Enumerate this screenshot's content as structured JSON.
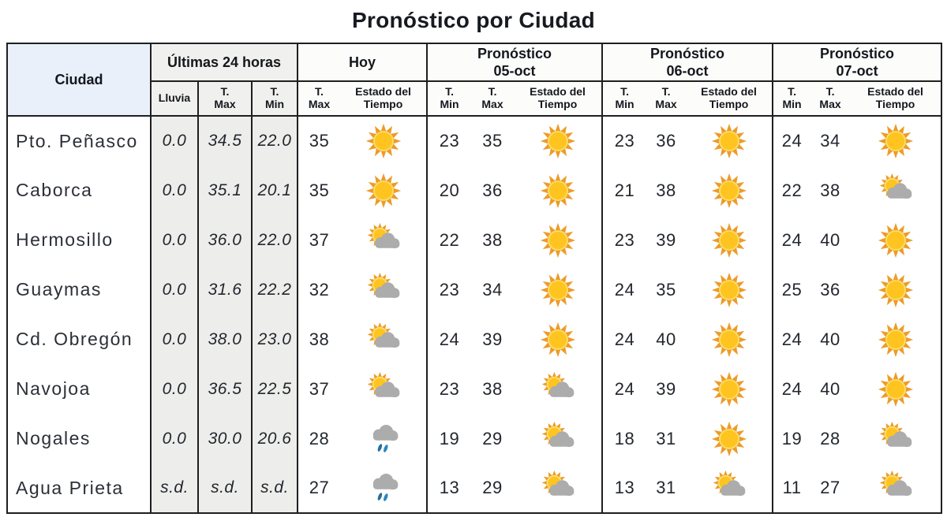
{
  "title": "Pronóstico por Ciudad",
  "colors": {
    "header_blue": "#e9f0f9",
    "header_gray": "#f0f0ee",
    "column_gray": "#ededeb",
    "table_border": "#1f1f1f",
    "text": "#23272e",
    "sun_ray": "#ed9b28",
    "sun_core": "#ffc41f",
    "sun_ring": "#f8df6c",
    "cloud": "#acacac",
    "rain": "#2e86bb",
    "rain_dark": "#276f9e"
  },
  "table": {
    "header": {
      "ciudad": "Ciudad",
      "last24": {
        "title": "Últimas 24 horas",
        "lluvia": "Lluvia",
        "tmax": "T.\nMax",
        "tmin": "T.\nMin"
      },
      "hoy": {
        "title": "Hoy",
        "tmax": "T.\nMax",
        "estado": "Estado del\nTiempo"
      },
      "f05": {
        "title": "Pronóstico\n05-oct",
        "tmin": "T.\nMin",
        "tmax": "T.\nMax",
        "estado": "Estado del\nTiempo"
      },
      "f06": {
        "title": "Pronóstico\n06-oct",
        "tmin": "T.\nMin",
        "tmax": "T.\nMax",
        "estado": "Estado del\nTiempo"
      },
      "f07": {
        "title": "Pronóstico\n07-oct",
        "tmin": "T.\nMin",
        "tmax": "T.\nMax",
        "estado": "Estado del\nTiempo"
      }
    },
    "rows": [
      {
        "city": "Pto. Peñasco",
        "lluvia": "0.0",
        "tmax24": "34.5",
        "tmin24": "22.0",
        "hoy": {
          "tmax": "35",
          "estado": "sunny"
        },
        "f05": {
          "tmin": "23",
          "tmax": "35",
          "estado": "sunny"
        },
        "f06": {
          "tmin": "23",
          "tmax": "36",
          "estado": "sunny"
        },
        "f07": {
          "tmin": "24",
          "tmax": "34",
          "estado": "sunny"
        }
      },
      {
        "city": "Caborca",
        "lluvia": "0.0",
        "tmax24": "35.1",
        "tmin24": "20.1",
        "hoy": {
          "tmax": "35",
          "estado": "sunny"
        },
        "f05": {
          "tmin": "20",
          "tmax": "36",
          "estado": "sunny"
        },
        "f06": {
          "tmin": "21",
          "tmax": "38",
          "estado": "sunny"
        },
        "f07": {
          "tmin": "22",
          "tmax": "38",
          "estado": "partly-cloudy"
        }
      },
      {
        "city": "Hermosillo",
        "lluvia": "0.0",
        "tmax24": "36.0",
        "tmin24": "22.0",
        "hoy": {
          "tmax": "37",
          "estado": "partly-cloudy"
        },
        "f05": {
          "tmin": "22",
          "tmax": "38",
          "estado": "sunny"
        },
        "f06": {
          "tmin": "23",
          "tmax": "39",
          "estado": "sunny"
        },
        "f07": {
          "tmin": "24",
          "tmax": "40",
          "estado": "sunny"
        }
      },
      {
        "city": "Guaymas",
        "lluvia": "0.0",
        "tmax24": "31.6",
        "tmin24": "22.2",
        "hoy": {
          "tmax": "32",
          "estado": "partly-cloudy"
        },
        "f05": {
          "tmin": "23",
          "tmax": "34",
          "estado": "sunny"
        },
        "f06": {
          "tmin": "24",
          "tmax": "35",
          "estado": "sunny"
        },
        "f07": {
          "tmin": "25",
          "tmax": "36",
          "estado": "sunny"
        }
      },
      {
        "city": "Cd. Obregón",
        "lluvia": "0.0",
        "tmax24": "38.0",
        "tmin24": "23.0",
        "hoy": {
          "tmax": "38",
          "estado": "partly-cloudy"
        },
        "f05": {
          "tmin": "24",
          "tmax": "39",
          "estado": "sunny"
        },
        "f06": {
          "tmin": "24",
          "tmax": "40",
          "estado": "sunny"
        },
        "f07": {
          "tmin": "24",
          "tmax": "40",
          "estado": "sunny"
        }
      },
      {
        "city": "Navojoa",
        "lluvia": "0.0",
        "tmax24": "36.5",
        "tmin24": "22.5",
        "hoy": {
          "tmax": "37",
          "estado": "partly-cloudy"
        },
        "f05": {
          "tmin": "23",
          "tmax": "38",
          "estado": "partly-cloudy"
        },
        "f06": {
          "tmin": "24",
          "tmax": "39",
          "estado": "sunny"
        },
        "f07": {
          "tmin": "24",
          "tmax": "40",
          "estado": "sunny"
        }
      },
      {
        "city": "Nogales",
        "lluvia": "0.0",
        "tmax24": "30.0",
        "tmin24": "20.6",
        "hoy": {
          "tmax": "28",
          "estado": "rain"
        },
        "f05": {
          "tmin": "19",
          "tmax": "29",
          "estado": "partly-cloudy"
        },
        "f06": {
          "tmin": "18",
          "tmax": "31",
          "estado": "sunny"
        },
        "f07": {
          "tmin": "19",
          "tmax": "28",
          "estado": "partly-cloudy"
        }
      },
      {
        "city": "Agua Prieta",
        "lluvia": "s.d.",
        "tmax24": "s.d.",
        "tmin24": "s.d.",
        "hoy": {
          "tmax": "27",
          "estado": "rain"
        },
        "f05": {
          "tmin": "13",
          "tmax": "29",
          "estado": "partly-cloudy"
        },
        "f06": {
          "tmin": "13",
          "tmax": "31",
          "estado": "partly-cloudy"
        },
        "f07": {
          "tmin": "11",
          "tmax": "27",
          "estado": "partly-cloudy"
        }
      }
    ]
  },
  "chart_data": {
    "type": "table",
    "title": "Pronóstico por Ciudad",
    "column_groups": [
      "Ciudad",
      "Últimas 24 horas",
      "Hoy",
      "Pronóstico 05-oct",
      "Pronóstico 06-oct",
      "Pronóstico 07-oct"
    ],
    "columns": [
      "Ciudad",
      "Lluvia",
      "T. Max",
      "T. Min",
      "T. Max",
      "Estado del Tiempo",
      "T. Min",
      "T. Max",
      "Estado del Tiempo",
      "T. Min",
      "T. Max",
      "Estado del Tiempo",
      "T. Min",
      "T. Max",
      "Estado del Tiempo"
    ],
    "rows": [
      [
        "Pto. Peñasco",
        "0.0",
        "34.5",
        "22.0",
        "35",
        "sunny",
        "23",
        "35",
        "sunny",
        "23",
        "36",
        "sunny",
        "24",
        "34",
        "sunny"
      ],
      [
        "Caborca",
        "0.0",
        "35.1",
        "20.1",
        "35",
        "sunny",
        "20",
        "36",
        "sunny",
        "21",
        "38",
        "sunny",
        "22",
        "38",
        "partly-cloudy"
      ],
      [
        "Hermosillo",
        "0.0",
        "36.0",
        "22.0",
        "37",
        "partly-cloudy",
        "22",
        "38",
        "sunny",
        "23",
        "39",
        "sunny",
        "24",
        "40",
        "sunny"
      ],
      [
        "Guaymas",
        "0.0",
        "31.6",
        "22.2",
        "32",
        "partly-cloudy",
        "23",
        "34",
        "sunny",
        "24",
        "35",
        "sunny",
        "25",
        "36",
        "sunny"
      ],
      [
        "Cd. Obregón",
        "0.0",
        "38.0",
        "23.0",
        "38",
        "partly-cloudy",
        "24",
        "39",
        "sunny",
        "24",
        "40",
        "sunny",
        "24",
        "40",
        "sunny"
      ],
      [
        "Navojoa",
        "0.0",
        "36.5",
        "22.5",
        "37",
        "partly-cloudy",
        "23",
        "38",
        "partly-cloudy",
        "24",
        "39",
        "sunny",
        "24",
        "40",
        "sunny"
      ],
      [
        "Nogales",
        "0.0",
        "30.0",
        "20.6",
        "28",
        "rain",
        "19",
        "29",
        "partly-cloudy",
        "18",
        "31",
        "sunny",
        "19",
        "28",
        "partly-cloudy"
      ],
      [
        "Agua Prieta",
        "s.d.",
        "s.d.",
        "s.d.",
        "27",
        "rain",
        "13",
        "29",
        "partly-cloudy",
        "13",
        "31",
        "partly-cloudy",
        "11",
        "27",
        "partly-cloudy"
      ]
    ]
  }
}
